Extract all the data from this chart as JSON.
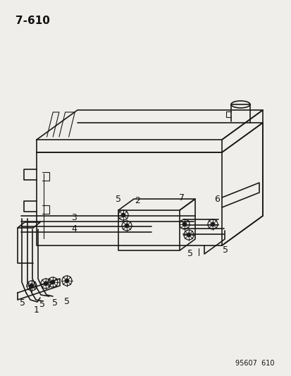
{
  "title": "7-610",
  "footnote": "95607  610",
  "bg_color": "#f0eeea",
  "line_color": "#1a1a1a",
  "text_color": "#111111",
  "fig_width": 4.14,
  "fig_height": 5.33,
  "dpi": 100
}
